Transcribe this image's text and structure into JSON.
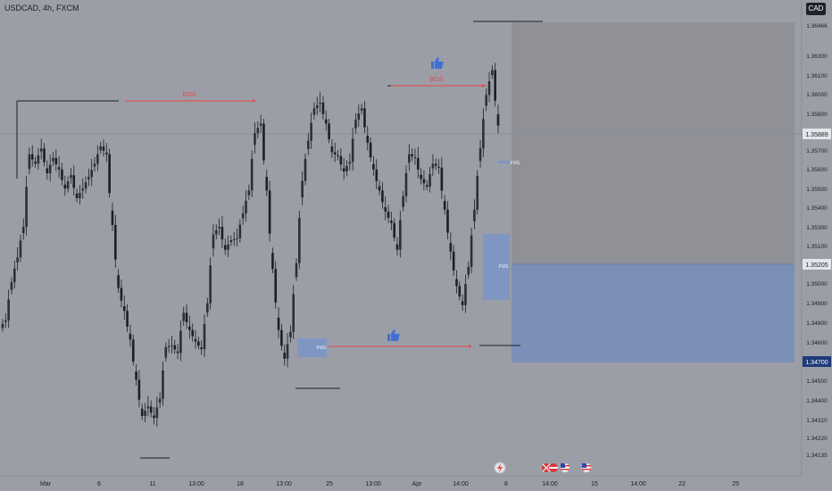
{
  "header": {
    "symbol_line": "USDCAD, 4h, FXCM",
    "currency_button": "CAD"
  },
  "colors": {
    "background": "#9b9ea6",
    "candle": "#1c1f26",
    "zone": "#7c8fb8",
    "arrow": "#e8464a",
    "label_blue": "#3f6fd6",
    "price_tag": "#1e3a78"
  },
  "annotations": {
    "bos_labels": [
      "BOS",
      "BOS"
    ],
    "fvg_labels": [
      "FVG",
      "FVG",
      "FVG"
    ],
    "icons": [
      "thumbs-up-icon",
      "thumbs-up-icon"
    ]
  },
  "chart_data": {
    "type": "candlestick",
    "title": "USDCAD, 4h, FXCM",
    "y_axis": {
      "ticks": [
        "1.36466",
        "1.36300",
        "1.36100",
        "1.36000",
        "1.35800",
        "1.35700",
        "1.35600",
        "1.35500",
        "1.35400",
        "1.35300",
        "1.35100",
        "1.35000",
        "1.34900",
        "1.34800",
        "1.34600",
        "1.34500",
        "1.34400",
        "1.34310",
        "1.34220",
        "1.34135"
      ],
      "current_price": "1.35889",
      "level_1": "1.35205",
      "level_2": "1.34700"
    },
    "x_axis": {
      "ticks": [
        "Mar",
        "6",
        "11",
        "13:00",
        "18",
        "13:00",
        "25",
        "13:00",
        "Apr",
        "14:00",
        "8",
        "14:00",
        "15",
        "14:00",
        "22",
        "25"
      ]
    },
    "close_path": [
      1.3492,
      1.3512,
      1.3525,
      1.3541,
      1.3579,
      1.3574,
      1.3582,
      1.3569,
      1.3577,
      1.3571,
      1.3561,
      1.3568,
      1.3556,
      1.3561,
      1.3567,
      1.3574,
      1.3583,
      1.3579,
      1.3542,
      1.3509,
      1.3497,
      1.3482,
      1.3461,
      1.3442,
      1.3447,
      1.3441,
      1.3451,
      1.3478,
      1.3479,
      1.3475,
      1.3496,
      1.3487,
      1.3481,
      1.3477,
      1.3501,
      1.3537,
      1.3541,
      1.3529,
      1.3534,
      1.3535,
      1.3548,
      1.356,
      1.359,
      1.3595,
      1.356,
      1.3519,
      1.3487,
      1.3472,
      1.3486,
      1.3522,
      1.3565,
      1.3586,
      1.3603,
      1.3606,
      1.3595,
      1.358,
      1.3578,
      1.357,
      1.3575,
      1.3597,
      1.3603,
      1.3585,
      1.3571,
      1.356,
      1.3549,
      1.3543,
      1.3529,
      1.3557,
      1.3579,
      1.3577,
      1.3566,
      1.3562,
      1.3574,
      1.3572,
      1.355,
      1.3528,
      1.351,
      1.35,
      1.352,
      1.355,
      1.3582,
      1.361,
      1.3623,
      1.3594
    ]
  }
}
